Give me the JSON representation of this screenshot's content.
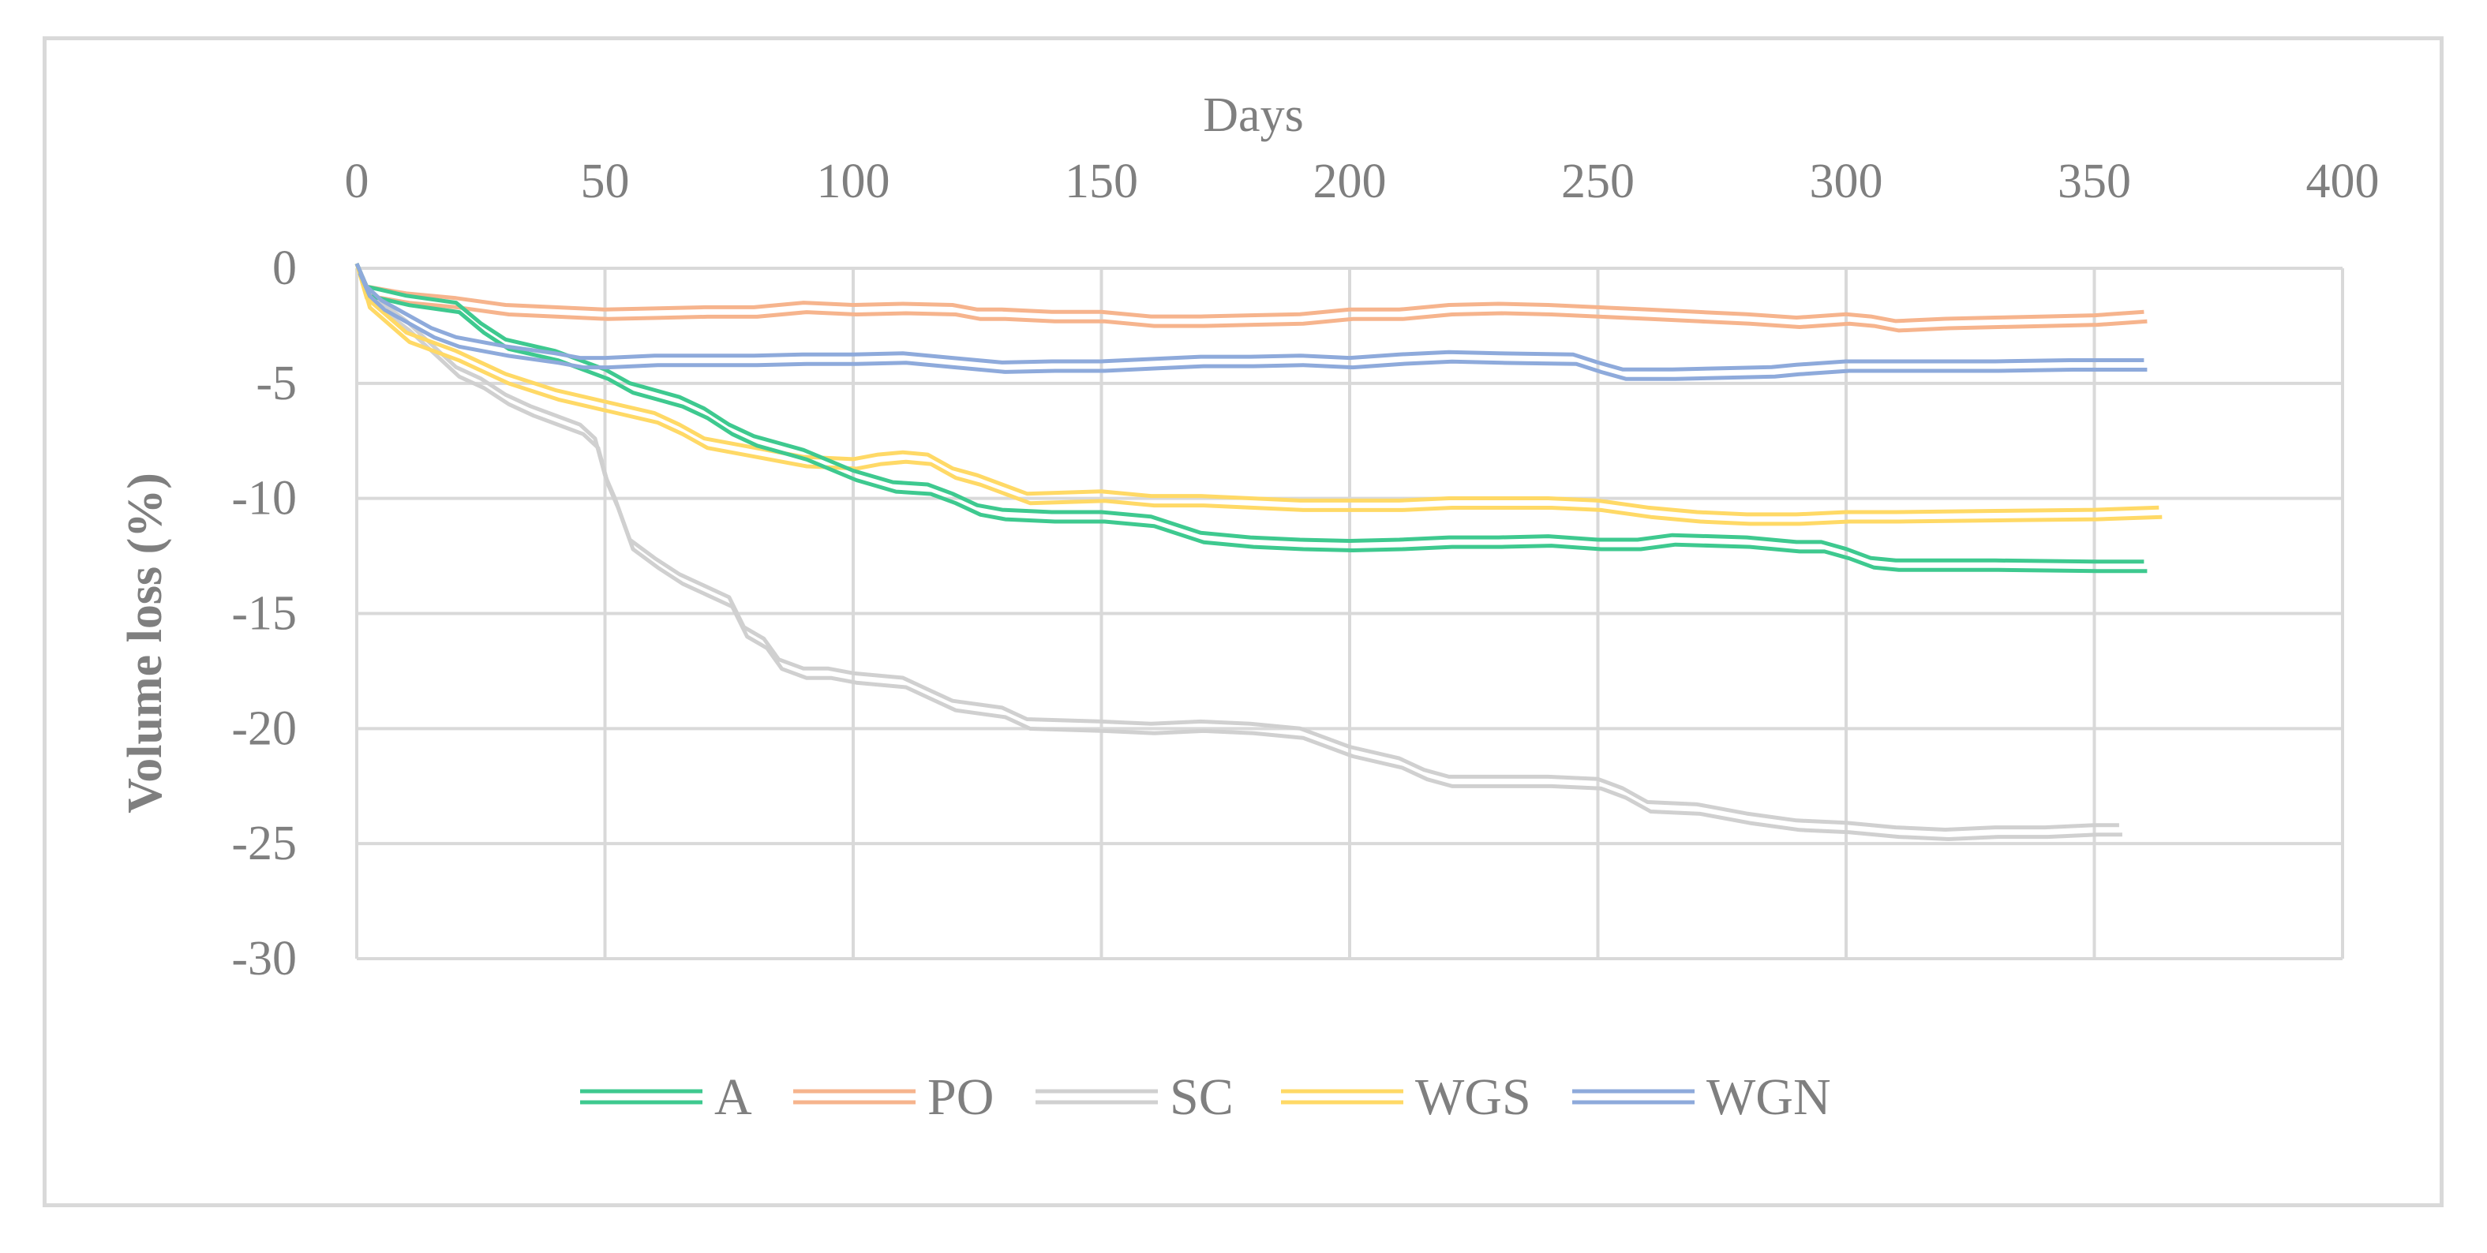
{
  "chart_data": {
    "type": "line",
    "title": "",
    "xlabel": "Days",
    "ylabel": "Volume loss (%)",
    "xlim": [
      0,
      400
    ],
    "ylim": [
      -30,
      0
    ],
    "x_ticks": [
      0,
      50,
      100,
      150,
      200,
      250,
      300,
      350,
      400
    ],
    "y_ticks": [
      0,
      -5,
      -10,
      -15,
      -20,
      -25,
      -30
    ],
    "x_axis_position": "top",
    "grid": true,
    "legend_position": "bottom",
    "series": [
      {
        "name": "A",
        "color": "#3ec98f",
        "points": [
          [
            0,
            0
          ],
          [
            2,
            -1
          ],
          [
            10,
            -1.4
          ],
          [
            20,
            -1.7
          ],
          [
            25,
            -2.6
          ],
          [
            30,
            -3.3
          ],
          [
            40,
            -3.8
          ],
          [
            50,
            -4.6
          ],
          [
            55,
            -5.2
          ],
          [
            60,
            -5.5
          ],
          [
            65,
            -5.8
          ],
          [
            70,
            -6.3
          ],
          [
            75,
            -7
          ],
          [
            80,
            -7.5
          ],
          [
            85,
            -7.8
          ],
          [
            90,
            -8.1
          ],
          [
            100,
            -9
          ],
          [
            108,
            -9.5
          ],
          [
            115,
            -9.6
          ],
          [
            120,
            -10
          ],
          [
            125,
            -10.5
          ],
          [
            130,
            -10.7
          ],
          [
            140,
            -10.8
          ],
          [
            150,
            -10.8
          ],
          [
            155,
            -10.9
          ],
          [
            160,
            -11
          ],
          [
            170,
            -11.7
          ],
          [
            180,
            -11.9
          ],
          [
            190,
            -12
          ],
          [
            200,
            -12.05
          ],
          [
            210,
            -12
          ],
          [
            220,
            -11.9
          ],
          [
            230,
            -11.9
          ],
          [
            240,
            -11.85
          ],
          [
            250,
            -12
          ],
          [
            258,
            -12
          ],
          [
            265,
            -11.8
          ],
          [
            280,
            -11.9
          ],
          [
            290,
            -12.1
          ],
          [
            295,
            -12.1
          ],
          [
            300,
            -12.4
          ],
          [
            305,
            -12.8
          ],
          [
            310,
            -12.9
          ],
          [
            330,
            -12.9
          ],
          [
            350,
            -12.95
          ],
          [
            360,
            -12.95
          ]
        ]
      },
      {
        "name": "PO",
        "color": "#f6b48d",
        "points": [
          [
            0,
            0
          ],
          [
            2,
            -1
          ],
          [
            10,
            -1.3
          ],
          [
            20,
            -1.5
          ],
          [
            30,
            -1.8
          ],
          [
            40,
            -1.9
          ],
          [
            50,
            -2
          ],
          [
            60,
            -1.95
          ],
          [
            70,
            -1.9
          ],
          [
            80,
            -1.9
          ],
          [
            90,
            -1.7
          ],
          [
            100,
            -1.8
          ],
          [
            110,
            -1.75
          ],
          [
            120,
            -1.8
          ],
          [
            125,
            -2
          ],
          [
            130,
            -2
          ],
          [
            140,
            -2.1
          ],
          [
            150,
            -2.1
          ],
          [
            160,
            -2.3
          ],
          [
            170,
            -2.3
          ],
          [
            180,
            -2.25
          ],
          [
            190,
            -2.2
          ],
          [
            200,
            -2
          ],
          [
            210,
            -2
          ],
          [
            220,
            -1.8
          ],
          [
            230,
            -1.75
          ],
          [
            240,
            -1.8
          ],
          [
            250,
            -1.9
          ],
          [
            260,
            -2
          ],
          [
            270,
            -2.1
          ],
          [
            280,
            -2.2
          ],
          [
            290,
            -2.35
          ],
          [
            300,
            -2.2
          ],
          [
            305,
            -2.3
          ],
          [
            310,
            -2.5
          ],
          [
            320,
            -2.4
          ],
          [
            330,
            -2.35
          ],
          [
            340,
            -2.3
          ],
          [
            350,
            -2.25
          ],
          [
            360,
            -2.1
          ]
        ]
      },
      {
        "name": "SC",
        "color": "#d0d0d0",
        "points": [
          [
            0,
            0
          ],
          [
            2,
            -1.2
          ],
          [
            10,
            -2.5
          ],
          [
            20,
            -4.5
          ],
          [
            25,
            -5
          ],
          [
            30,
            -5.7
          ],
          [
            35,
            -6.2
          ],
          [
            40,
            -6.6
          ],
          [
            45,
            -7
          ],
          [
            48,
            -7.6
          ],
          [
            50,
            -9.2
          ],
          [
            52,
            -10.2
          ],
          [
            55,
            -12
          ],
          [
            60,
            -12.8
          ],
          [
            65,
            -13.5
          ],
          [
            70,
            -14
          ],
          [
            75,
            -14.5
          ],
          [
            78,
            -15.8
          ],
          [
            82,
            -16.3
          ],
          [
            85,
            -17.2
          ],
          [
            90,
            -17.6
          ],
          [
            95,
            -17.6
          ],
          [
            100,
            -17.8
          ],
          [
            110,
            -18
          ],
          [
            115,
            -18.5
          ],
          [
            120,
            -19
          ],
          [
            130,
            -19.3
          ],
          [
            135,
            -19.8
          ],
          [
            150,
            -19.9
          ],
          [
            160,
            -20
          ],
          [
            170,
            -19.9
          ],
          [
            180,
            -20
          ],
          [
            190,
            -20.2
          ],
          [
            200,
            -21
          ],
          [
            210,
            -21.5
          ],
          [
            215,
            -22
          ],
          [
            220,
            -22.3
          ],
          [
            230,
            -22.3
          ],
          [
            240,
            -22.3
          ],
          [
            250,
            -22.4
          ],
          [
            255,
            -22.8
          ],
          [
            260,
            -23.4
          ],
          [
            270,
            -23.5
          ],
          [
            280,
            -23.9
          ],
          [
            290,
            -24.2
          ],
          [
            300,
            -24.3
          ],
          [
            310,
            -24.5
          ],
          [
            320,
            -24.6
          ],
          [
            330,
            -24.5
          ],
          [
            340,
            -24.5
          ],
          [
            350,
            -24.4
          ],
          [
            355,
            -24.4
          ]
        ]
      },
      {
        "name": "WGS",
        "color": "#ffd966",
        "points": [
          [
            0,
            0
          ],
          [
            2,
            -1.5
          ],
          [
            10,
            -3
          ],
          [
            20,
            -3.8
          ],
          [
            30,
            -4.8
          ],
          [
            40,
            -5.5
          ],
          [
            50,
            -6
          ],
          [
            60,
            -6.5
          ],
          [
            65,
            -7
          ],
          [
            70,
            -7.6
          ],
          [
            80,
            -8
          ],
          [
            90,
            -8.4
          ],
          [
            100,
            -8.5
          ],
          [
            105,
            -8.3
          ],
          [
            110,
            -8.2
          ],
          [
            115,
            -8.3
          ],
          [
            120,
            -8.9
          ],
          [
            125,
            -9.2
          ],
          [
            130,
            -9.6
          ],
          [
            135,
            -10
          ],
          [
            150,
            -9.9
          ],
          [
            160,
            -10.1
          ],
          [
            170,
            -10.1
          ],
          [
            180,
            -10.2
          ],
          [
            190,
            -10.3
          ],
          [
            200,
            -10.3
          ],
          [
            210,
            -10.3
          ],
          [
            220,
            -10.2
          ],
          [
            230,
            -10.2
          ],
          [
            240,
            -10.2
          ],
          [
            250,
            -10.3
          ],
          [
            260,
            -10.6
          ],
          [
            270,
            -10.8
          ],
          [
            280,
            -10.9
          ],
          [
            290,
            -10.9
          ],
          [
            300,
            -10.8
          ],
          [
            310,
            -10.8
          ],
          [
            330,
            -10.75
          ],
          [
            350,
            -10.7
          ],
          [
            363,
            -10.6
          ]
        ]
      },
      {
        "name": "WGN",
        "color": "#8eaadb",
        "points": [
          [
            0,
            0
          ],
          [
            2,
            -1
          ],
          [
            5,
            -1.6
          ],
          [
            10,
            -2.2
          ],
          [
            15,
            -2.8
          ],
          [
            20,
            -3.2
          ],
          [
            25,
            -3.4
          ],
          [
            30,
            -3.6
          ],
          [
            40,
            -3.9
          ],
          [
            45,
            -4.1
          ],
          [
            50,
            -4.1
          ],
          [
            60,
            -4
          ],
          [
            70,
            -4
          ],
          [
            80,
            -4
          ],
          [
            90,
            -3.95
          ],
          [
            100,
            -3.95
          ],
          [
            110,
            -3.9
          ],
          [
            120,
            -4.1
          ],
          [
            130,
            -4.3
          ],
          [
            140,
            -4.25
          ],
          [
            150,
            -4.25
          ],
          [
            160,
            -4.15
          ],
          [
            170,
            -4.05
          ],
          [
            180,
            -4.05
          ],
          [
            190,
            -4
          ],
          [
            200,
            -4.1
          ],
          [
            210,
            -3.95
          ],
          [
            220,
            -3.85
          ],
          [
            230,
            -3.9
          ],
          [
            245,
            -3.95
          ],
          [
            250,
            -4.3
          ],
          [
            255,
            -4.6
          ],
          [
            265,
            -4.6
          ],
          [
            275,
            -4.55
          ],
          [
            285,
            -4.5
          ],
          [
            290,
            -4.4
          ],
          [
            300,
            -4.25
          ],
          [
            310,
            -4.25
          ],
          [
            320,
            -4.25
          ],
          [
            330,
            -4.25
          ],
          [
            345,
            -4.2
          ],
          [
            360,
            -4.2
          ]
        ]
      }
    ]
  }
}
